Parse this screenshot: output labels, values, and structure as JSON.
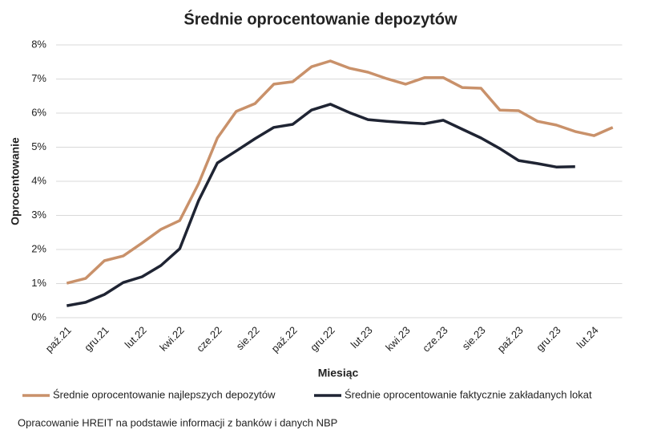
{
  "chart_data": {
    "type": "line",
    "title": "Średnie oprocentowanie depozytów",
    "x_label": "Miesiąc",
    "y_label": "Oprocentowanie",
    "source": "Opracowanie HREIT na podstawie informacji z banków i danych NBP",
    "categories": [
      "paź.21",
      null,
      "gru.21",
      null,
      "lut.22",
      null,
      "kwi.22",
      null,
      "cze.22",
      null,
      "sie.22",
      null,
      "paź.22",
      null,
      "gru.22",
      null,
      "lut.23",
      null,
      "kwi.23",
      null,
      "cze.23",
      null,
      "sie.23",
      null,
      "paź.23",
      null,
      "gru.23",
      null,
      "lut.24",
      null
    ],
    "series": [
      {
        "name": "Średnie oprocentowanie najlepszych depozytów",
        "color": "#c9916a",
        "values": [
          1.01,
          1.15,
          1.67,
          1.81,
          2.19,
          2.59,
          2.85,
          3.93,
          5.27,
          6.05,
          6.28,
          6.85,
          6.92,
          7.36,
          7.53,
          7.32,
          7.2,
          7.01,
          6.85,
          7.04,
          7.04,
          6.75,
          6.73,
          6.09,
          6.07,
          5.76,
          5.65,
          5.46,
          5.34,
          5.58
        ]
      },
      {
        "name": "Średnie oprocentowanie faktycznie zakładanych lokat",
        "color": "#1f2433",
        "values": [
          0.35,
          0.45,
          0.68,
          1.03,
          1.2,
          1.53,
          2.02,
          3.43,
          4.54,
          4.89,
          5.25,
          5.58,
          5.67,
          6.09,
          6.26,
          6.02,
          5.81,
          5.76,
          5.72,
          5.69,
          5.79,
          5.53,
          5.27,
          4.96,
          4.61,
          4.52,
          4.42,
          4.43,
          null,
          null
        ]
      }
    ],
    "ylim": [
      0,
      8
    ],
    "yticks": [
      {
        "value": 0,
        "label": "0%"
      },
      {
        "value": 1,
        "label": "1%"
      },
      {
        "value": 2,
        "label": "2%"
      },
      {
        "value": 3,
        "label": "3%"
      },
      {
        "value": 4,
        "label": "4%"
      },
      {
        "value": 5,
        "label": "5%"
      },
      {
        "value": 6,
        "label": "6%"
      },
      {
        "value": 7,
        "label": "7%"
      },
      {
        "value": 8,
        "label": "8%"
      }
    ],
    "grid": true
  }
}
